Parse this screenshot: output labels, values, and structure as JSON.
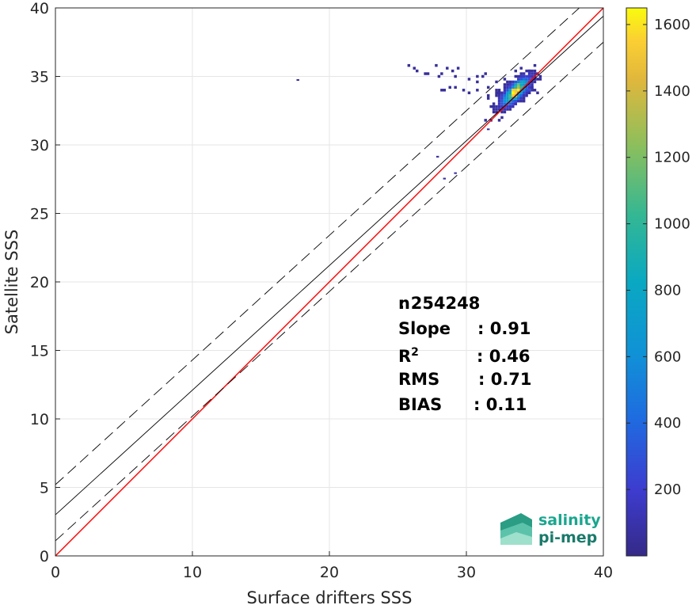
{
  "chart_data": {
    "type": "heatmap",
    "title": "",
    "xlabel": "Surface drifters SSS",
    "ylabel": "Satellite SSS",
    "xlim": [
      0,
      40
    ],
    "ylim": [
      0,
      40
    ],
    "xticks": [
      0,
      10,
      20,
      30,
      40
    ],
    "yticks": [
      0,
      5,
      10,
      15,
      20,
      25,
      30,
      35,
      40
    ],
    "grid": true,
    "colorbar": {
      "range": [
        0,
        1650
      ],
      "ticks": [
        200,
        400,
        600,
        800,
        1000,
        1200,
        1400,
        1600
      ],
      "colormap": "parula"
    },
    "density_cluster": {
      "center": [
        33.5,
        33.8
      ],
      "core_max_count": 1650,
      "x_extent": [
        24.5,
        35.5
      ],
      "y_extent": [
        27.5,
        37.0
      ]
    },
    "lines": [
      {
        "kind": "identity",
        "color": "#ff0000",
        "slope": 1.0,
        "intercept": 0.0
      },
      {
        "kind": "regression",
        "color": "#000000",
        "slope": 0.91,
        "intercept": 3.0
      },
      {
        "kind": "upper-bound",
        "color": "#000000",
        "style": "dashed",
        "slope": 0.91,
        "intercept": 5.2
      },
      {
        "kind": "lower-bound",
        "color": "#000000",
        "style": "dashed",
        "slope": 0.91,
        "intercept": 1.1
      }
    ],
    "stats": [
      {
        "label": "n",
        "value": ": 254248"
      },
      {
        "label": "Slope",
        "value": ": 0.91"
      },
      {
        "label": "R",
        "sup": "2",
        "value": ": 0.46"
      },
      {
        "label": "RMS",
        "value": ": 0.71"
      },
      {
        "label": "BIAS",
        "value": ": 0.11"
      }
    ]
  },
  "logo": {
    "line1": "salinity",
    "line2": "pi-mep",
    "color": "#1aa68e"
  }
}
